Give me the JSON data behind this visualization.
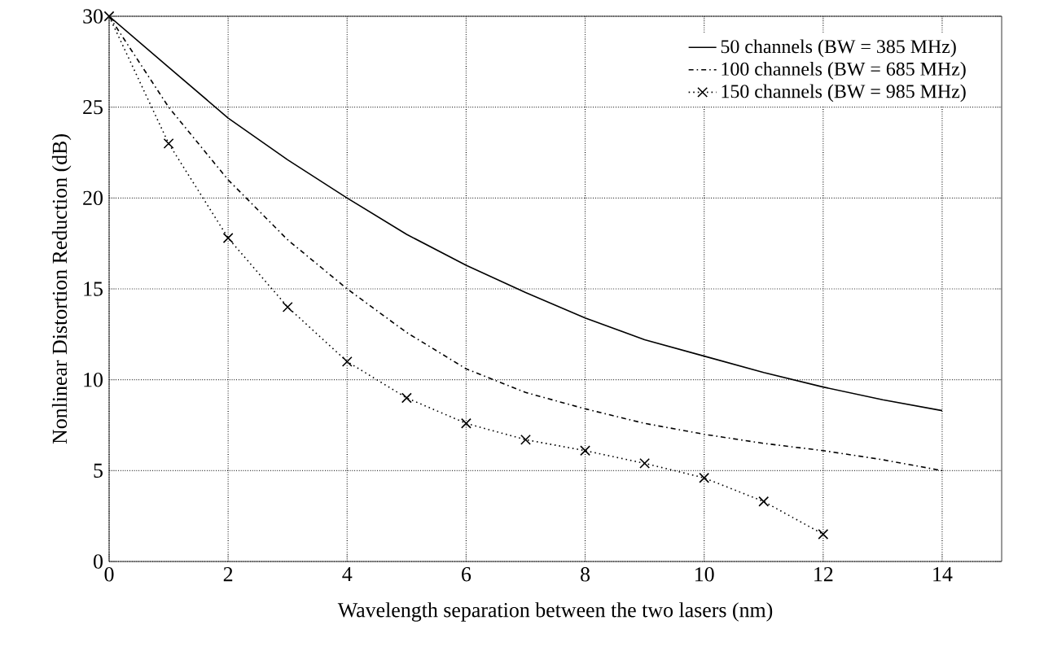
{
  "chart_data": {
    "type": "line",
    "xlabel": "Wavelength separation between the two lasers (nm)",
    "ylabel": "Nonlinear Distortion Reduction (dB)",
    "x": [
      0,
      1,
      2,
      3,
      4,
      5,
      6,
      7,
      8,
      9,
      10,
      11,
      12,
      13,
      14
    ],
    "series": [
      {
        "name": "50 channels (BW = 385 MHz)",
        "color": "#000000",
        "line_style": "solid",
        "marker": "none",
        "values": [
          30,
          27.2,
          24.4,
          22.1,
          20,
          18,
          16.3,
          14.8,
          13.4,
          12.2,
          11.3,
          10.4,
          9.6,
          8.9,
          8.3
        ]
      },
      {
        "name": "100 channels (BW = 685 MHz)",
        "color": "#000000",
        "line_style": "dashed",
        "marker": "none",
        "values": [
          30,
          25,
          21,
          17.7,
          15,
          12.6,
          10.6,
          9.3,
          8.4,
          7.6,
          7,
          6.5,
          6.1,
          5.6,
          5.0
        ]
      },
      {
        "name": "150 channels (BW = 985 MHz)",
        "color": "#000000",
        "line_style": "dotted",
        "marker": "cross",
        "x": [
          0,
          1,
          2,
          3,
          4,
          5,
          6,
          7,
          8,
          9,
          10,
          11,
          12
        ],
        "values": [
          30,
          23,
          17.8,
          14,
          11,
          9,
          7.6,
          6.7,
          6.1,
          5.4,
          4.6,
          3.3,
          1.5
        ]
      }
    ],
    "xlim": [
      0,
      15
    ],
    "ylim": [
      0,
      30
    ],
    "xticks": [
      0,
      2,
      4,
      6,
      8,
      10,
      12,
      14
    ],
    "yticks": [
      0,
      5,
      10,
      15,
      20,
      25,
      30
    ],
    "grid": true,
    "legend": "top right"
  }
}
